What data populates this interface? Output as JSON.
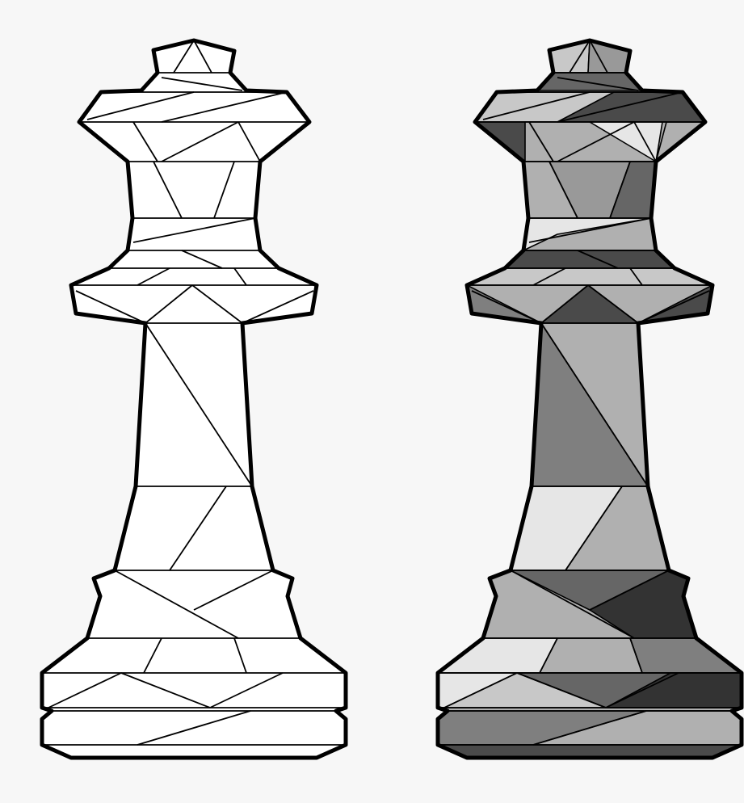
{
  "figures": [
    {
      "name": "queen-outline-uncolored",
      "style": "outline"
    },
    {
      "name": "queen-grayscale-shaded",
      "style": "grayscale"
    }
  ],
  "colors": {
    "background": "#f7f7f7",
    "outline": "#000000",
    "uncolored_fill": "#ffffff",
    "shades": [
      "#e6e6e6",
      "#c8c8c8",
      "#b0b0b0",
      "#999999",
      "#7f7f7f",
      "#666666",
      "#4a4a4a",
      "#333333"
    ]
  }
}
